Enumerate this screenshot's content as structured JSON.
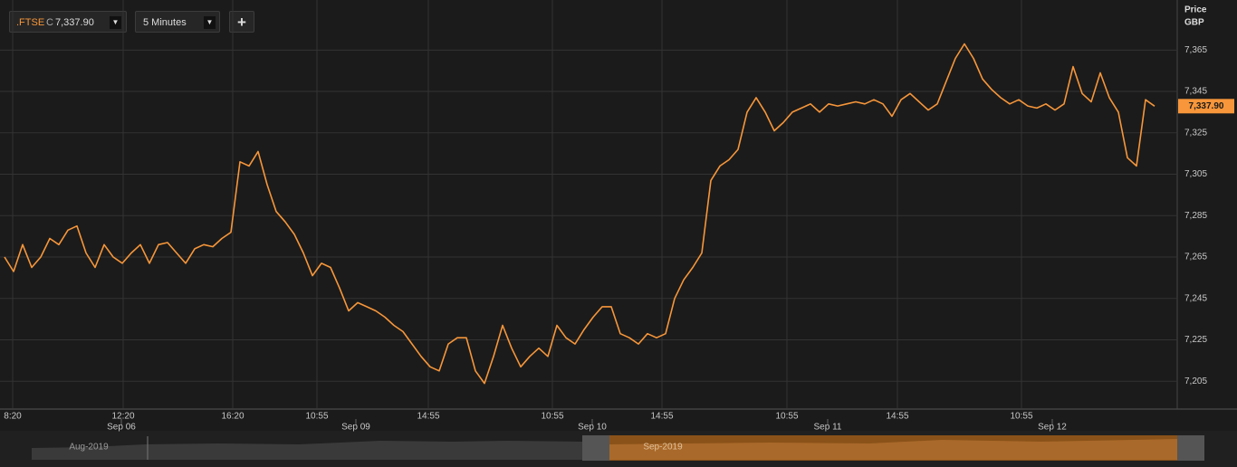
{
  "toolbar": {
    "symbol": ".FTSE",
    "close_flag": "C",
    "close_value": "7,337.90",
    "interval": "5 Minutes",
    "add": "+"
  },
  "chart_data": {
    "type": "line",
    "axis_title": "Price",
    "currency": "GBP",
    "last_label": {
      "value": 7337.9,
      "label": "7,337.90"
    },
    "series": [
      {
        "name": ".FTSE",
        "color": "#f7963a",
        "values": [
          7265,
          7258,
          7271,
          7260,
          7265,
          7274,
          7271,
          7278,
          7280,
          7267,
          7260,
          7271,
          7265,
          7262,
          7267,
          7271,
          7262,
          7271,
          7272,
          7267,
          7262,
          7269,
          7271,
          7270,
          7274,
          7277,
          7311,
          7309,
          7316,
          7300,
          7287,
          7282,
          7276,
          7267,
          7256,
          7262,
          7260,
          7250,
          7239,
          7243,
          7241,
          7239,
          7236,
          7232,
          7229,
          7223,
          7217,
          7212,
          7210,
          7223,
          7226,
          7226,
          7210,
          7204,
          7217,
          7232,
          7221,
          7212,
          7217,
          7221,
          7217,
          7232,
          7226,
          7223,
          7230,
          7236,
          7241,
          7241,
          7228,
          7226,
          7223,
          7228,
          7226,
          7228,
          7245,
          7254,
          7260,
          7267,
          7302,
          7309,
          7312,
          7317,
          7335,
          7342,
          7335,
          7326,
          7330,
          7335,
          7337,
          7339,
          7335,
          7339,
          7338,
          7339,
          7340,
          7339,
          7341,
          7339,
          7333,
          7341,
          7344,
          7340,
          7336,
          7339,
          7350,
          7361,
          7368,
          7361,
          7351,
          7346,
          7342,
          7339,
          7341,
          7338,
          7337,
          7339,
          7336,
          7339,
          7357,
          7344,
          7340,
          7354,
          7342,
          7335,
          7313,
          7309,
          7341,
          7337.9
        ]
      }
    ],
    "ylim": [
      7192,
      7387
    ],
    "yticks": [
      {
        "value": 7205,
        "label": "7,205"
      },
      {
        "value": 7225,
        "label": "7,225"
      },
      {
        "value": 7245,
        "label": "7,245"
      },
      {
        "value": 7265,
        "label": "7,265"
      },
      {
        "value": 7285,
        "label": "7,285"
      },
      {
        "value": 7305,
        "label": "7,305"
      },
      {
        "value": 7325,
        "label": "7,325"
      },
      {
        "value": 7345,
        "label": "7,345"
      },
      {
        "value": 7365,
        "label": "7,365"
      }
    ],
    "xlim": [
      0,
      127.3
    ],
    "xticks": [
      {
        "value": 0.9,
        "label": "8:20"
      },
      {
        "value": 13.1,
        "label": "12:20"
      },
      {
        "value": 25.2,
        "label": "16:20"
      },
      {
        "value": 34.5,
        "label": "10:55"
      },
      {
        "value": 46.8,
        "label": "14:55"
      },
      {
        "value": 60.5,
        "label": "10:55"
      },
      {
        "value": 72.6,
        "label": "14:55"
      },
      {
        "value": 86.4,
        "label": "10:55"
      },
      {
        "value": 98.6,
        "label": "14:55"
      },
      {
        "value": 112.3,
        "label": "10:55"
      }
    ],
    "xdates": [
      {
        "value": 12.9,
        "label": "Sep 06"
      },
      {
        "value": 38.8,
        "label": "Sep 09"
      },
      {
        "value": 64.9,
        "label": "Sep 10"
      },
      {
        "value": 90.9,
        "label": "Sep 11"
      },
      {
        "value": 115.7,
        "label": "Sep 12"
      }
    ],
    "navigator": {
      "left_label": "Aug-2019",
      "right_label": "Sep-2019"
    },
    "grid": true
  }
}
